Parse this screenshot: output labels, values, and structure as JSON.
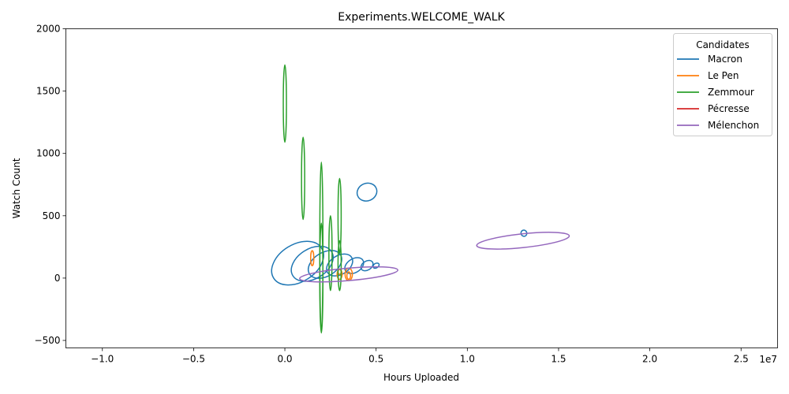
{
  "chart_data": {
    "type": "contour",
    "title": "Experiments.WELCOME_WALK",
    "xlabel": "Hours Uploaded",
    "ylabel": "Watch Count",
    "x_offset_label": "1e7",
    "xlim": [
      -1.2,
      2.7
    ],
    "ylim": [
      -560,
      2000
    ],
    "x_unit_scale": 10000000,
    "x_ticks": [
      -1.0,
      -0.5,
      0.0,
      0.5,
      1.0,
      1.5,
      2.0,
      2.5
    ],
    "x_tick_labels": [
      "−1.0",
      "−0.5",
      "0.0",
      "0.5",
      "1.0",
      "1.5",
      "2.0",
      "2.5"
    ],
    "y_ticks": [
      -500,
      0,
      500,
      1000,
      1500,
      2000
    ],
    "y_tick_labels": [
      "−500",
      "0",
      "500",
      "1000",
      "1500",
      "2000"
    ],
    "legend": {
      "title": "Candidates",
      "placement": "top-right",
      "entries": [
        "Macron",
        "Le Pen",
        "Zemmour",
        "Pécresse",
        "Mélenchon"
      ]
    },
    "colors": {
      "Macron": "#1f77b4",
      "Le Pen": "#ff7f0e",
      "Zemmour": "#2ca02c",
      "Pécresse": "#d62728",
      "Mélenchon": "#9467bd"
    },
    "series": [
      {
        "name": "Macron",
        "contours": [
          {
            "cx": 0.07,
            "cy": 120,
            "rx": 1.55,
            "ry": 150,
            "angle": 32
          },
          {
            "cx": 0.15,
            "cy": 115,
            "rx": 1.25,
            "ry": 120,
            "angle": 32
          },
          {
            "cx": 0.22,
            "cy": 110,
            "rx": 1.0,
            "ry": 95,
            "angle": 32
          },
          {
            "cx": 0.3,
            "cy": 105,
            "rx": 0.78,
            "ry": 75,
            "angle": 32
          },
          {
            "cx": 0.38,
            "cy": 100,
            "rx": 0.56,
            "ry": 55,
            "angle": 32
          },
          {
            "cx": 0.45,
            "cy": 100,
            "rx": 0.36,
            "ry": 36,
            "angle": 32
          },
          {
            "cx": 0.5,
            "cy": 100,
            "rx": 0.18,
            "ry": 18,
            "angle": 32
          },
          {
            "cx": 0.45,
            "cy": 690,
            "rx": 0.55,
            "ry": 70,
            "angle": 22
          },
          {
            "cx": 1.31,
            "cy": 360,
            "rx": 0.16,
            "ry": 25,
            "angle": 20
          }
        ]
      },
      {
        "name": "Le Pen",
        "contours": [
          {
            "cx": 0.35,
            "cy": 30,
            "rx": 0.2,
            "ry": 50,
            "angle": 0
          },
          {
            "cx": 0.3,
            "cy": 30,
            "rx": 0.14,
            "ry": 40,
            "angle": 0
          },
          {
            "cx": 0.35,
            "cy": 20,
            "rx": 0.1,
            "ry": 30,
            "angle": 0
          },
          {
            "cx": 0.3,
            "cy": 50,
            "rx": 0.06,
            "ry": 20,
            "angle": 0
          },
          {
            "cx": 0.15,
            "cy": 160,
            "rx": 0.08,
            "ry": 60,
            "angle": 0
          }
        ]
      },
      {
        "name": "Zemmour",
        "contours": [
          {
            "cx": 0.0,
            "cy": 1400,
            "rx": 0.03,
            "ry": 310,
            "angle": 0
          },
          {
            "cx": 0.1,
            "cy": 800,
            "rx": 0.05,
            "ry": 330,
            "angle": 0
          },
          {
            "cx": 0.2,
            "cy": 250,
            "rx": 0.06,
            "ry": 680,
            "angle": 0
          },
          {
            "cx": 0.2,
            "cy": 0,
            "rx": 0.08,
            "ry": 440,
            "angle": 0
          },
          {
            "cx": 0.25,
            "cy": 200,
            "rx": 0.06,
            "ry": 300,
            "angle": 0
          },
          {
            "cx": 0.3,
            "cy": 500,
            "rx": 0.04,
            "ry": 300,
            "angle": 0
          },
          {
            "cx": 0.3,
            "cy": 100,
            "rx": 0.04,
            "ry": 200,
            "angle": 0
          }
        ]
      },
      {
        "name": "Pécresse",
        "contours": []
      },
      {
        "name": "Mélenchon",
        "contours": [
          {
            "cx": 0.35,
            "cy": 30,
            "rx": 2.7,
            "ry": 50,
            "angle": 5
          },
          {
            "cx": 13.05,
            "cy": 300,
            "rx": 2.55,
            "ry": 55,
            "angle": 6
          }
        ]
      }
    ]
  }
}
